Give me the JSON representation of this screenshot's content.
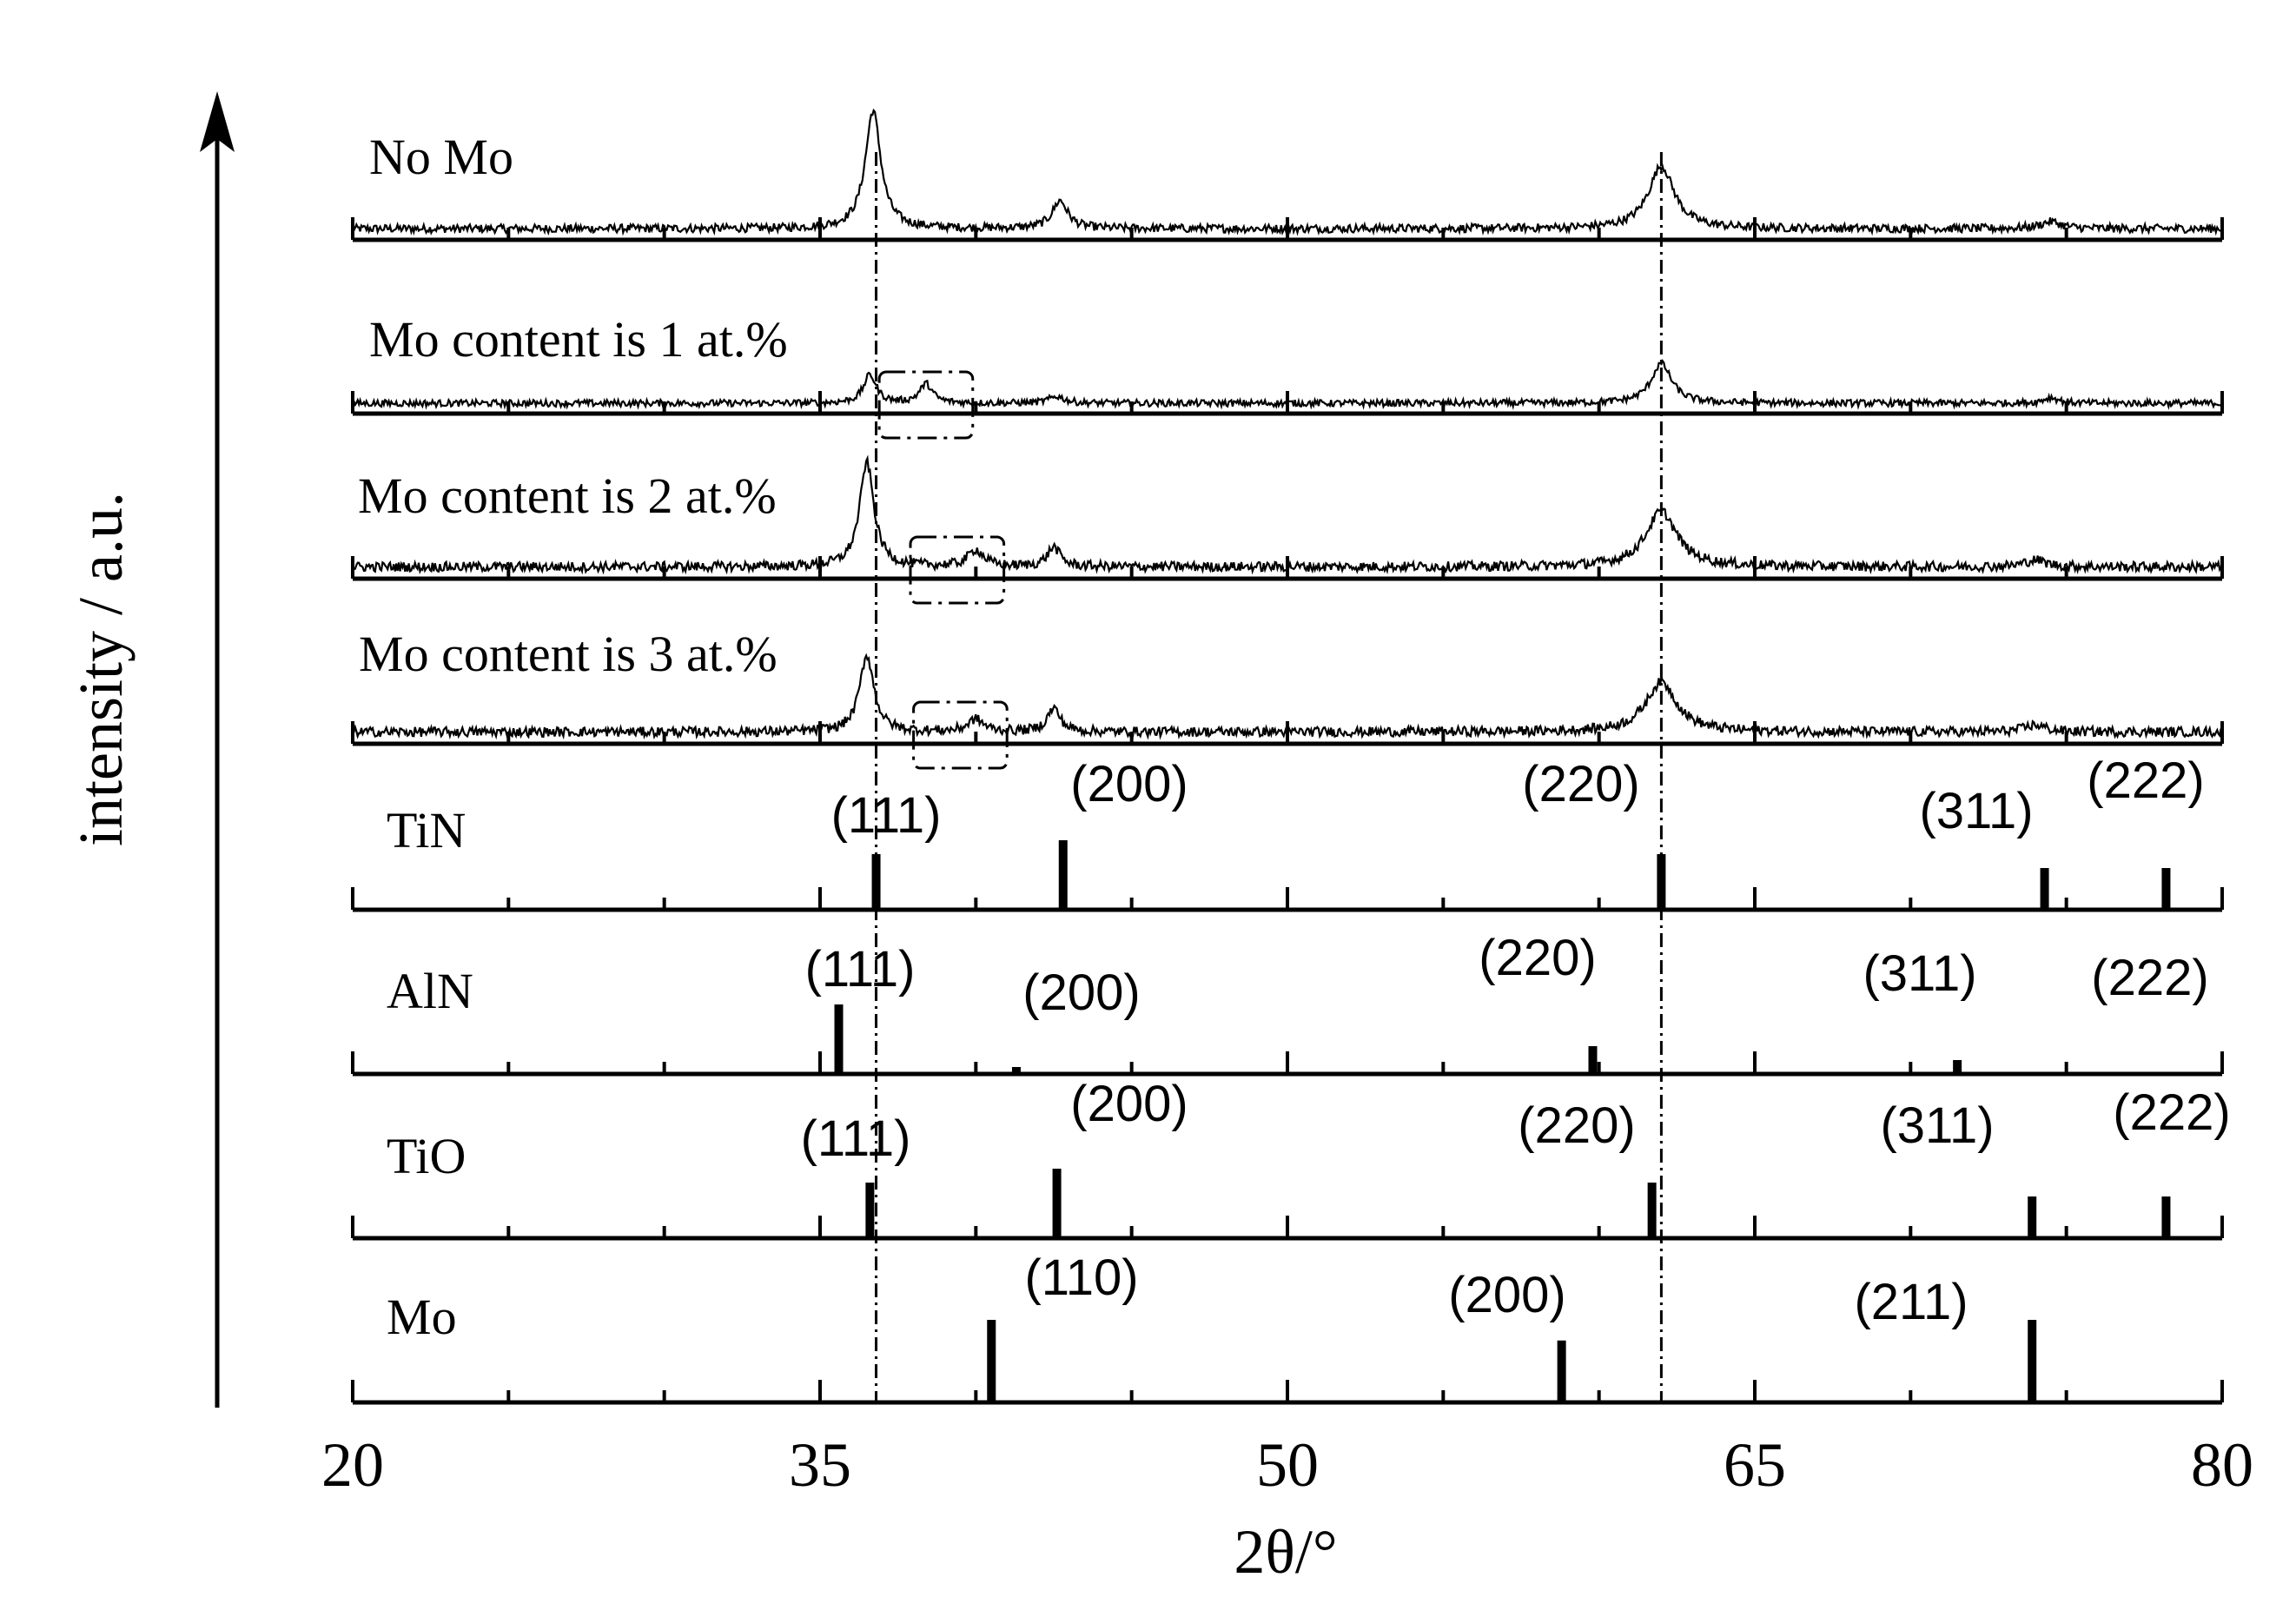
{
  "chart_data": {
    "type": "line",
    "xlabel": "2θ/°",
    "ylabel": "intensity / a.u.",
    "xlim": [
      20,
      80
    ],
    "x_ticks": [
      20,
      35,
      50,
      65,
      80
    ],
    "grid": false,
    "legend": "none",
    "series": [
      {
        "name": "No Mo",
        "peaks": [
          {
            "x": 36.7,
            "height": 0.85,
            "width": 0.6
          },
          {
            "x": 42.7,
            "height": 0.2,
            "width": 0.6
          },
          {
            "x": 62.0,
            "height": 0.45,
            "width": 1.0
          },
          {
            "x": 74.5,
            "height": 0.05,
            "width": 0.8
          }
        ],
        "noise": 0.03
      },
      {
        "name": "Mo content is 1 at.%",
        "peaks": [
          {
            "x": 36.6,
            "height": 0.25,
            "width": 0.5
          },
          {
            "x": 38.4,
            "height": 0.17,
            "width": 0.5
          },
          {
            "x": 42.6,
            "height": 0.06,
            "width": 0.6
          },
          {
            "x": 62.0,
            "height": 0.35,
            "width": 0.8
          },
          {
            "x": 74.5,
            "height": 0.05,
            "width": 0.6
          }
        ],
        "noise": 0.03,
        "highlight_box": [
          36.9,
          39.9
        ]
      },
      {
        "name": "Mo content is 2 at.%",
        "peaks": [
          {
            "x": 36.5,
            "height": 0.75,
            "width": 0.55
          },
          {
            "x": 40.0,
            "height": 0.12,
            "width": 0.6
          },
          {
            "x": 42.5,
            "height": 0.14,
            "width": 0.5
          },
          {
            "x": 62.0,
            "height": 0.4,
            "width": 1.2
          },
          {
            "x": 74.0,
            "height": 0.05,
            "width": 0.8
          }
        ],
        "noise": 0.035,
        "highlight_box": [
          37.9,
          40.9
        ]
      },
      {
        "name": "Mo content is 3 at.%",
        "peaks": [
          {
            "x": 36.5,
            "height": 0.55,
            "width": 0.55
          },
          {
            "x": 40.0,
            "height": 0.09,
            "width": 0.6
          },
          {
            "x": 42.5,
            "height": 0.17,
            "width": 0.5
          },
          {
            "x": 62.0,
            "height": 0.36,
            "width": 1.2
          },
          {
            "x": 74.0,
            "height": 0.05,
            "width": 0.8
          }
        ],
        "noise": 0.035,
        "highlight_box": [
          38.0,
          41.0
        ]
      }
    ],
    "references": [
      {
        "name": "TiN",
        "sticks": [
          {
            "x": 36.8,
            "h": 0.8,
            "hkl": "(111)"
          },
          {
            "x": 42.8,
            "h": 1.0,
            "hkl": "(200)"
          },
          {
            "x": 62.0,
            "h": 0.8,
            "hkl": "(220)"
          },
          {
            "x": 74.3,
            "h": 0.6,
            "hkl": "(311)"
          },
          {
            "x": 78.2,
            "h": 0.6,
            "hkl": "(222)"
          }
        ]
      },
      {
        "name": "AlN",
        "sticks": [
          {
            "x": 35.6,
            "h": 1.0,
            "hkl": "(111)"
          },
          {
            "x": 41.3,
            "h": 0.1,
            "hkl": "(200)"
          },
          {
            "x": 59.8,
            "h": 0.4,
            "hkl": "(220)"
          },
          {
            "x": 71.5,
            "h": 0.2,
            "hkl": "(311)"
          },
          {
            "x": 75.8,
            "h": 0.0,
            "hkl": "(222)"
          }
        ]
      },
      {
        "name": "TiO",
        "sticks": [
          {
            "x": 36.6,
            "h": 0.8,
            "hkl": "(111)"
          },
          {
            "x": 42.6,
            "h": 1.0,
            "hkl": "(200)"
          },
          {
            "x": 61.7,
            "h": 0.8,
            "hkl": "(220)"
          },
          {
            "x": 73.9,
            "h": 0.6,
            "hkl": "(311)"
          },
          {
            "x": 78.2,
            "h": 0.6,
            "hkl": "(222)"
          }
        ]
      },
      {
        "name": "Mo",
        "sticks": [
          {
            "x": 40.5,
            "h": 1.0,
            "hkl": "(110)"
          },
          {
            "x": 58.8,
            "h": 0.75,
            "hkl": "(200)"
          },
          {
            "x": 73.9,
            "h": 1.0,
            "hkl": "(211)"
          }
        ]
      }
    ],
    "reference_lines": [
      36.8,
      62.0
    ]
  }
}
